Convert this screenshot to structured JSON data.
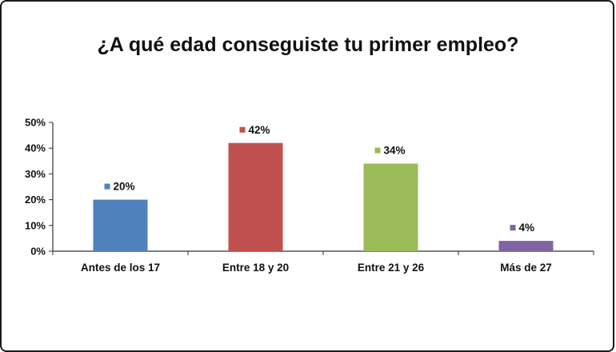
{
  "chart_data": {
    "type": "bar",
    "title": "¿A qué edad conseguiste tu primer empleo?",
    "categories": [
      "Antes de los 17",
      "Entre 18 y 20",
      "Entre 21 y 26",
      "Más de 27"
    ],
    "values": [
      20,
      42,
      34,
      4
    ],
    "data_labels": [
      "20%",
      "42%",
      "34%",
      "4%"
    ],
    "colors": [
      "#4f81bd",
      "#c0504d",
      "#9bbb59",
      "#8064a2"
    ],
    "ylim": [
      0,
      50
    ],
    "yticks": [
      "0%",
      "10%",
      "20%",
      "30%",
      "40%",
      "50%"
    ],
    "xlabel": "",
    "ylabel": "",
    "grid": false,
    "legend": "none"
  }
}
